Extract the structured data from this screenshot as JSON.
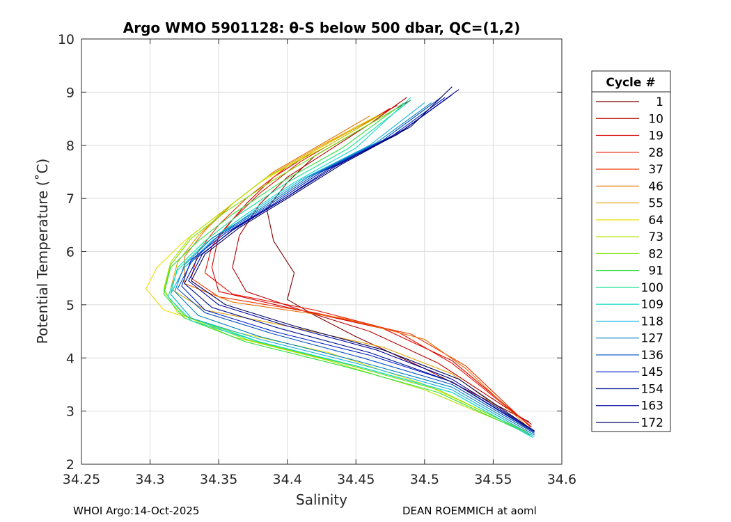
{
  "chart_data": {
    "type": "line",
    "title": "Argo WMO 5901128: θ-S below 500 dbar,  QC=(1,2)",
    "xlabel": "Salinity",
    "ylabel": "Potential Temperature (˚C)",
    "xlim": [
      34.25,
      34.6
    ],
    "ylim": [
      2,
      10
    ],
    "xticks": [
      "34.25",
      "34.3",
      "34.35",
      "34.4",
      "34.45",
      "34.5",
      "34.55",
      "34.6"
    ],
    "yticks": [
      "2",
      "3",
      "4",
      "5",
      "6",
      "7",
      "8",
      "9",
      "10"
    ],
    "grid": true,
    "legend": {
      "title": "Cycle #",
      "position": "right",
      "entries": [
        "1",
        "10",
        "19",
        "28",
        "37",
        "46",
        "55",
        "64",
        "73",
        "82",
        "91",
        "100",
        "109",
        "118",
        "127",
        "136",
        "145",
        "154",
        "163",
        "172"
      ]
    },
    "series": [
      {
        "name": "1",
        "color": "#800000",
        "points": [
          [
            34.576,
            2.8
          ],
          [
            34.5,
            3.8
          ],
          [
            34.45,
            4.4
          ],
          [
            34.42,
            4.8
          ],
          [
            34.4,
            5.1
          ],
          [
            34.405,
            5.6
          ],
          [
            34.39,
            6.2
          ],
          [
            34.385,
            6.8
          ],
          [
            34.4,
            7.3
          ],
          [
            34.42,
            7.8
          ],
          [
            34.46,
            8.4
          ],
          [
            34.49,
            8.85
          ]
        ]
      },
      {
        "name": "10",
        "color": "#b40000",
        "points": [
          [
            34.578,
            2.75
          ],
          [
            34.51,
            3.9
          ],
          [
            34.46,
            4.5
          ],
          [
            34.41,
            4.9
          ],
          [
            34.37,
            5.25
          ],
          [
            34.36,
            5.7
          ],
          [
            34.365,
            6.3
          ],
          [
            34.38,
            6.9
          ],
          [
            34.4,
            7.4
          ],
          [
            34.43,
            7.9
          ],
          [
            34.46,
            8.4
          ],
          [
            34.487,
            8.9
          ]
        ]
      },
      {
        "name": "19",
        "color": "#d60000",
        "points": [
          [
            34.578,
            2.7
          ],
          [
            34.52,
            3.95
          ],
          [
            34.47,
            4.55
          ],
          [
            34.4,
            4.95
          ],
          [
            34.35,
            5.25
          ],
          [
            34.345,
            5.7
          ],
          [
            34.35,
            6.3
          ],
          [
            34.37,
            6.9
          ],
          [
            34.39,
            7.4
          ],
          [
            34.42,
            7.9
          ],
          [
            34.455,
            8.4
          ],
          [
            34.48,
            8.75
          ]
        ]
      },
      {
        "name": "28",
        "color": "#e81000",
        "points": [
          [
            34.577,
            2.72
          ],
          [
            34.52,
            3.9
          ],
          [
            34.48,
            4.5
          ],
          [
            34.42,
            4.9
          ],
          [
            34.36,
            5.2
          ],
          [
            34.34,
            5.6
          ],
          [
            34.345,
            6.1
          ],
          [
            34.36,
            6.6
          ],
          [
            34.38,
            7.1
          ],
          [
            34.41,
            7.7
          ],
          [
            34.45,
            8.3
          ],
          [
            34.475,
            8.7
          ]
        ]
      },
      {
        "name": "37",
        "color": "#f03000",
        "points": [
          [
            34.577,
            2.7
          ],
          [
            34.53,
            3.85
          ],
          [
            34.49,
            4.45
          ],
          [
            34.42,
            4.85
          ],
          [
            34.35,
            5.15
          ],
          [
            34.33,
            5.5
          ],
          [
            34.335,
            6.0
          ],
          [
            34.35,
            6.5
          ],
          [
            34.37,
            7.0
          ],
          [
            34.4,
            7.6
          ],
          [
            34.44,
            8.2
          ],
          [
            34.47,
            8.6
          ]
        ]
      },
      {
        "name": "46",
        "color": "#e87000",
        "points": [
          [
            34.576,
            2.68
          ],
          [
            34.53,
            3.8
          ],
          [
            34.5,
            4.35
          ],
          [
            34.44,
            4.75
          ],
          [
            34.36,
            5.05
          ],
          [
            34.325,
            5.4
          ],
          [
            34.325,
            5.9
          ],
          [
            34.34,
            6.4
          ],
          [
            34.36,
            6.9
          ],
          [
            34.39,
            7.5
          ],
          [
            34.43,
            8.1
          ],
          [
            34.46,
            8.55
          ]
        ]
      },
      {
        "name": "55",
        "color": "#e0a000",
        "points": [
          [
            34.575,
            2.66
          ],
          [
            34.52,
            3.7
          ],
          [
            34.47,
            4.2
          ],
          [
            34.4,
            4.6
          ],
          [
            34.34,
            4.9
          ],
          [
            34.315,
            5.3
          ],
          [
            34.32,
            5.8
          ],
          [
            34.335,
            6.3
          ],
          [
            34.355,
            6.8
          ],
          [
            34.385,
            7.4
          ],
          [
            34.425,
            8.0
          ],
          [
            34.465,
            8.55
          ]
        ]
      },
      {
        "name": "64",
        "color": "#e8e000",
        "points": [
          [
            34.574,
            2.62
          ],
          [
            34.5,
            3.5
          ],
          [
            34.43,
            4.1
          ],
          [
            34.36,
            4.5
          ],
          [
            34.31,
            4.9
          ],
          [
            34.297,
            5.3
          ],
          [
            34.305,
            5.7
          ],
          [
            34.325,
            6.2
          ],
          [
            34.35,
            6.7
          ],
          [
            34.38,
            7.3
          ],
          [
            34.42,
            7.9
          ],
          [
            34.465,
            8.55
          ]
        ]
      },
      {
        "name": "73",
        "color": "#b4e000",
        "points": [
          [
            34.575,
            2.6
          ],
          [
            34.5,
            3.4
          ],
          [
            34.43,
            3.95
          ],
          [
            34.36,
            4.4
          ],
          [
            34.32,
            4.85
          ],
          [
            34.31,
            5.3
          ],
          [
            34.315,
            5.8
          ],
          [
            34.33,
            6.3
          ],
          [
            34.355,
            6.8
          ],
          [
            34.385,
            7.4
          ],
          [
            34.43,
            8.0
          ],
          [
            34.47,
            8.6
          ]
        ]
      },
      {
        "name": "82",
        "color": "#78e000",
        "points": [
          [
            34.576,
            2.58
          ],
          [
            34.51,
            3.4
          ],
          [
            34.44,
            3.9
          ],
          [
            34.37,
            4.35
          ],
          [
            34.325,
            4.8
          ],
          [
            34.31,
            5.25
          ],
          [
            34.315,
            5.75
          ],
          [
            34.33,
            6.25
          ],
          [
            34.355,
            6.75
          ],
          [
            34.39,
            7.35
          ],
          [
            34.43,
            7.95
          ],
          [
            34.48,
            8.7
          ]
        ]
      },
      {
        "name": "91",
        "color": "#30e040",
        "points": [
          [
            34.577,
            2.55
          ],
          [
            34.51,
            3.35
          ],
          [
            34.44,
            3.85
          ],
          [
            34.37,
            4.3
          ],
          [
            34.325,
            4.75
          ],
          [
            34.31,
            5.2
          ],
          [
            34.315,
            5.7
          ],
          [
            34.335,
            6.2
          ],
          [
            34.36,
            6.7
          ],
          [
            34.395,
            7.3
          ],
          [
            34.44,
            7.95
          ],
          [
            34.485,
            8.8
          ]
        ]
      },
      {
        "name": "100",
        "color": "#10e090",
        "points": [
          [
            34.578,
            2.52
          ],
          [
            34.52,
            3.35
          ],
          [
            34.45,
            3.85
          ],
          [
            34.38,
            4.3
          ],
          [
            34.33,
            4.75
          ],
          [
            34.315,
            5.2
          ],
          [
            34.32,
            5.7
          ],
          [
            34.34,
            6.2
          ],
          [
            34.365,
            6.7
          ],
          [
            34.4,
            7.3
          ],
          [
            34.445,
            7.95
          ],
          [
            34.49,
            8.85
          ]
        ]
      },
      {
        "name": "109",
        "color": "#10d8c8",
        "points": [
          [
            34.579,
            2.5
          ],
          [
            34.52,
            3.35
          ],
          [
            34.45,
            3.85
          ],
          [
            34.38,
            4.3
          ],
          [
            34.33,
            4.7
          ],
          [
            34.313,
            5.15
          ],
          [
            34.32,
            5.65
          ],
          [
            34.34,
            6.15
          ],
          [
            34.37,
            6.7
          ],
          [
            34.405,
            7.3
          ],
          [
            34.45,
            7.95
          ],
          [
            34.49,
            8.9
          ]
        ]
      },
      {
        "name": "118",
        "color": "#10b0e0",
        "points": [
          [
            34.58,
            2.52
          ],
          [
            34.52,
            3.4
          ],
          [
            34.45,
            3.9
          ],
          [
            34.38,
            4.35
          ],
          [
            34.33,
            4.75
          ],
          [
            34.315,
            5.2
          ],
          [
            34.325,
            5.7
          ],
          [
            34.345,
            6.2
          ],
          [
            34.375,
            6.75
          ],
          [
            34.41,
            7.35
          ],
          [
            34.46,
            8.0
          ],
          [
            34.5,
            8.8
          ]
        ]
      },
      {
        "name": "127",
        "color": "#0080c0",
        "points": [
          [
            34.58,
            2.55
          ],
          [
            34.52,
            3.45
          ],
          [
            34.45,
            3.95
          ],
          [
            34.38,
            4.4
          ],
          [
            34.335,
            4.8
          ],
          [
            34.318,
            5.25
          ],
          [
            34.325,
            5.75
          ],
          [
            34.345,
            6.25
          ],
          [
            34.38,
            6.8
          ],
          [
            34.415,
            7.4
          ],
          [
            34.465,
            8.05
          ],
          [
            34.505,
            8.8
          ]
        ]
      },
      {
        "name": "136",
        "color": "#0050c0",
        "points": [
          [
            34.58,
            2.58
          ],
          [
            34.52,
            3.5
          ],
          [
            34.455,
            4.0
          ],
          [
            34.39,
            4.45
          ],
          [
            34.34,
            4.85
          ],
          [
            34.32,
            5.3
          ],
          [
            34.33,
            5.8
          ],
          [
            34.35,
            6.3
          ],
          [
            34.385,
            6.85
          ],
          [
            34.42,
            7.45
          ],
          [
            34.47,
            8.1
          ],
          [
            34.512,
            8.9
          ]
        ]
      },
      {
        "name": "145",
        "color": "#0020c8",
        "points": [
          [
            34.58,
            2.6
          ],
          [
            34.52,
            3.55
          ],
          [
            34.46,
            4.05
          ],
          [
            34.39,
            4.5
          ],
          [
            34.34,
            4.9
          ],
          [
            34.323,
            5.35
          ],
          [
            34.33,
            5.85
          ],
          [
            34.355,
            6.35
          ],
          [
            34.39,
            6.9
          ],
          [
            34.425,
            7.5
          ],
          [
            34.475,
            8.15
          ],
          [
            34.515,
            8.9
          ]
        ]
      },
      {
        "name": "154",
        "color": "#001090",
        "points": [
          [
            34.58,
            2.62
          ],
          [
            34.52,
            3.55
          ],
          [
            34.46,
            4.1
          ],
          [
            34.395,
            4.55
          ],
          [
            34.345,
            4.95
          ],
          [
            34.325,
            5.4
          ],
          [
            34.335,
            5.9
          ],
          [
            34.36,
            6.4
          ],
          [
            34.395,
            6.95
          ],
          [
            34.43,
            7.55
          ],
          [
            34.48,
            8.2
          ],
          [
            34.52,
            8.95
          ]
        ]
      },
      {
        "name": "163",
        "color": "#0000a0",
        "points": [
          [
            34.58,
            2.63
          ],
          [
            34.52,
            3.6
          ],
          [
            34.465,
            4.15
          ],
          [
            34.4,
            4.6
          ],
          [
            34.35,
            5.0
          ],
          [
            34.328,
            5.45
          ],
          [
            34.338,
            5.95
          ],
          [
            34.362,
            6.45
          ],
          [
            34.398,
            7.0
          ],
          [
            34.435,
            7.6
          ],
          [
            34.485,
            8.3
          ],
          [
            34.525,
            9.05
          ]
        ]
      },
      {
        "name": "172",
        "color": "#000060",
        "points": [
          [
            34.58,
            2.62
          ],
          [
            34.525,
            3.6
          ],
          [
            34.47,
            4.15
          ],
          [
            34.405,
            4.6
          ],
          [
            34.355,
            5.0
          ],
          [
            34.33,
            5.45
          ],
          [
            34.34,
            5.95
          ],
          [
            34.365,
            6.45
          ],
          [
            34.4,
            7.0
          ],
          [
            34.44,
            7.65
          ],
          [
            34.49,
            8.35
          ],
          [
            34.52,
            9.1
          ]
        ]
      }
    ]
  },
  "footer": {
    "left": "WHOI Argo:14-Oct-2025",
    "right": "DEAN ROEMMICH at aoml"
  }
}
